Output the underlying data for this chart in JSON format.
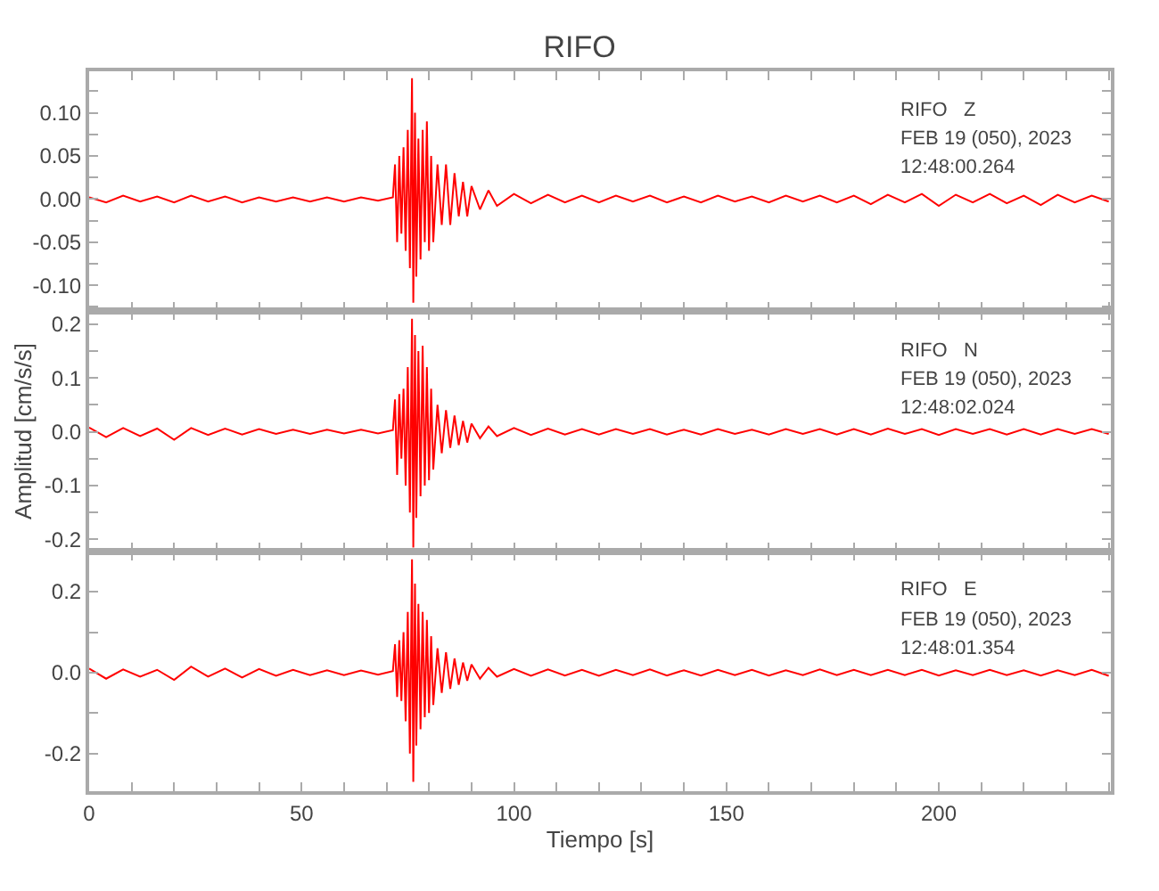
{
  "chart_data": [
    {
      "type": "line",
      "title": "RIFO",
      "tick_labels": "y",
      "annotations": [
        "RIFO   Z",
        "FEB 19 (050), 2023",
        "12:48:00.264"
      ],
      "xlim": [
        0,
        240.5
      ],
      "xticks": [
        0,
        {
          "value": 10,
          "label": null
        },
        {
          "value": 20,
          "label": null
        },
        {
          "value": 30,
          "label": null
        },
        {
          "value": 40,
          "label": null
        },
        50,
        {
          "value": 60,
          "label": null
        },
        {
          "value": 70,
          "label": null
        },
        {
          "value": 80,
          "label": null
        },
        {
          "value": 90,
          "label": null
        },
        100,
        {
          "value": 110,
          "label": null
        },
        {
          "value": 120,
          "label": null
        },
        {
          "value": 130,
          "label": null
        },
        {
          "value": 140,
          "label": null
        },
        150,
        {
          "value": 160,
          "label": null
        },
        {
          "value": 170,
          "label": null
        },
        {
          "value": 180,
          "label": null
        },
        {
          "value": 190,
          "label": null
        },
        200,
        {
          "value": 210,
          "label": null
        },
        {
          "value": 220,
          "label": null
        },
        {
          "value": 230,
          "label": null
        },
        {
          "value": 240,
          "label": null
        }
      ],
      "ylim": [
        -0.13,
        0.148
      ],
      "yticks": [
        {
          "value": -0.125,
          "label": null
        },
        {
          "value": -0.1,
          "label": "-0.10"
        },
        {
          "value": -0.075,
          "label": null
        },
        {
          "value": -0.05,
          "label": "-0.05"
        },
        {
          "value": -0.025,
          "label": null
        },
        {
          "value": 0,
          "label": "0.00"
        },
        {
          "value": 0.025,
          "label": null
        },
        {
          "value": 0.05,
          "label": "0.05"
        },
        {
          "value": 0.075,
          "label": null
        },
        {
          "value": 0.1,
          "label": "0.10"
        },
        {
          "value": 0.125,
          "label": null
        }
      ],
      "x": [
        0,
        4,
        8,
        12,
        16,
        20,
        24,
        28,
        32,
        36,
        40,
        44,
        48,
        52,
        56,
        60,
        64,
        68,
        71.5,
        72,
        72.5,
        73,
        73.5,
        74,
        74.5,
        75,
        75.5,
        76,
        76.3,
        76.7,
        77,
        77.5,
        78,
        78.5,
        79,
        79.5,
        80,
        80.5,
        81,
        82,
        83,
        84,
        85,
        86,
        87,
        88,
        89,
        90,
        92,
        94,
        96,
        100,
        104,
        108,
        112,
        116,
        120,
        124,
        128,
        132,
        136,
        140,
        144,
        148,
        152,
        156,
        160,
        164,
        168,
        172,
        176,
        180,
        184,
        188,
        192,
        196,
        200,
        204,
        208,
        212,
        216,
        220,
        224,
        228,
        232,
        236,
        240
      ],
      "series": [
        {
          "color": "#ff0000",
          "values": [
            0.002,
            -0.004,
            0.004,
            -0.003,
            0.003,
            -0.004,
            0.004,
            -0.003,
            0.003,
            -0.004,
            0.002,
            -0.003,
            0.002,
            -0.003,
            0.002,
            -0.003,
            0.002,
            -0.002,
            0.002,
            0.04,
            -0.05,
            0.05,
            -0.04,
            0.06,
            -0.06,
            0.08,
            -0.08,
            0.14,
            -0.12,
            0.1,
            -0.09,
            0.07,
            -0.07,
            0.08,
            -0.05,
            0.09,
            -0.06,
            0.05,
            -0.05,
            0.04,
            -0.03,
            0.04,
            -0.03,
            0.03,
            -0.02,
            0.02,
            -0.02,
            0.015,
            -0.012,
            0.01,
            -0.008,
            0.006,
            -0.005,
            0.005,
            -0.004,
            0.004,
            -0.004,
            0.004,
            -0.003,
            0.004,
            -0.004,
            0.003,
            -0.004,
            0.004,
            -0.003,
            0.003,
            -0.004,
            0.004,
            -0.003,
            0.004,
            -0.004,
            0.004,
            -0.006,
            0.005,
            -0.004,
            0.006,
            -0.008,
            0.005,
            -0.004,
            0.006,
            -0.005,
            0.004,
            -0.007,
            0.005,
            -0.004,
            0.004,
            -0.003
          ]
        }
      ]
    },
    {
      "type": "line",
      "ylabel": "Amplitud [cm/s/s]",
      "tick_labels": "y",
      "annotations": [
        "RIFO   N",
        "FEB 19 (050), 2023",
        "12:48:02.024"
      ],
      "xlim": [
        0,
        240.5
      ],
      "xticks": [
        0,
        {
          "value": 10,
          "label": null
        },
        {
          "value": 20,
          "label": null
        },
        {
          "value": 30,
          "label": null
        },
        {
          "value": 40,
          "label": null
        },
        50,
        {
          "value": 60,
          "label": null
        },
        {
          "value": 70,
          "label": null
        },
        {
          "value": 80,
          "label": null
        },
        {
          "value": 90,
          "label": null
        },
        100,
        {
          "value": 110,
          "label": null
        },
        {
          "value": 120,
          "label": null
        },
        {
          "value": 130,
          "label": null
        },
        {
          "value": 140,
          "label": null
        },
        150,
        {
          "value": 160,
          "label": null
        },
        {
          "value": 170,
          "label": null
        },
        {
          "value": 180,
          "label": null
        },
        {
          "value": 190,
          "label": null
        },
        200,
        {
          "value": 210,
          "label": null
        },
        {
          "value": 220,
          "label": null
        },
        {
          "value": 230,
          "label": null
        },
        {
          "value": 240,
          "label": null
        }
      ],
      "ylim": [
        -0.222,
        0.224
      ],
      "yticks": [
        {
          "value": -0.2,
          "label": "-0.2"
        },
        {
          "value": -0.15,
          "label": null
        },
        {
          "value": -0.1,
          "label": "-0.1"
        },
        {
          "value": -0.05,
          "label": null
        },
        {
          "value": 0,
          "label": "0.0"
        },
        {
          "value": 0.05,
          "label": null
        },
        {
          "value": 0.1,
          "label": "0.1"
        },
        {
          "value": 0.15,
          "label": null
        },
        {
          "value": 0.2,
          "label": "0.2"
        }
      ],
      "x": [
        0,
        4,
        8,
        12,
        16,
        20,
        24,
        28,
        32,
        36,
        40,
        44,
        48,
        52,
        56,
        60,
        64,
        68,
        71.5,
        72,
        72.5,
        73,
        73.5,
        74,
        74.5,
        75,
        75.5,
        76,
        76.3,
        76.7,
        77,
        77.5,
        78,
        78.5,
        79,
        79.5,
        80,
        80.5,
        81,
        82,
        83,
        84,
        85,
        86,
        87,
        88,
        89,
        90,
        92,
        94,
        96,
        100,
        104,
        108,
        112,
        116,
        120,
        124,
        128,
        132,
        136,
        140,
        144,
        148,
        152,
        156,
        160,
        164,
        168,
        172,
        176,
        180,
        184,
        188,
        192,
        196,
        200,
        204,
        208,
        212,
        216,
        220,
        224,
        228,
        232,
        236,
        240
      ],
      "series": [
        {
          "color": "#ff0000",
          "values": [
            0.008,
            -0.01,
            0.007,
            -0.008,
            0.006,
            -0.015,
            0.007,
            -0.006,
            0.006,
            -0.005,
            0.005,
            -0.004,
            0.004,
            -0.004,
            0.004,
            -0.003,
            0.004,
            -0.003,
            0.003,
            0.06,
            -0.08,
            0.07,
            -0.05,
            0.08,
            -0.1,
            0.12,
            -0.15,
            0.21,
            -0.215,
            0.18,
            -0.16,
            0.15,
            -0.12,
            0.16,
            -0.1,
            0.12,
            -0.09,
            0.08,
            -0.07,
            0.05,
            -0.04,
            0.04,
            -0.03,
            0.03,
            -0.025,
            0.02,
            -0.02,
            0.015,
            -0.012,
            0.01,
            -0.008,
            0.007,
            -0.006,
            0.006,
            -0.005,
            0.005,
            -0.005,
            0.005,
            -0.004,
            0.005,
            -0.005,
            0.004,
            -0.005,
            0.005,
            -0.004,
            0.004,
            -0.005,
            0.005,
            -0.004,
            0.005,
            -0.005,
            0.005,
            -0.005,
            0.006,
            -0.004,
            0.005,
            -0.006,
            0.005,
            -0.004,
            0.005,
            -0.005,
            0.005,
            -0.005,
            0.005,
            -0.004,
            0.005,
            -0.004
          ]
        }
      ]
    },
    {
      "type": "line",
      "xlabel": "Tiempo [s]",
      "annotations": [
        "RIFO   E",
        "FEB 19 (050), 2023",
        "12:48:01.354"
      ],
      "xlim": [
        0,
        240.5
      ],
      "xticks": [
        0,
        {
          "value": 10,
          "label": null
        },
        {
          "value": 20,
          "label": null
        },
        {
          "value": 30,
          "label": null
        },
        {
          "value": 40,
          "label": null
        },
        50,
        {
          "value": 60,
          "label": null
        },
        {
          "value": 70,
          "label": null
        },
        {
          "value": 80,
          "label": null
        },
        {
          "value": 90,
          "label": null
        },
        100,
        {
          "value": 110,
          "label": null
        },
        {
          "value": 120,
          "label": null
        },
        {
          "value": 130,
          "label": null
        },
        {
          "value": 140,
          "label": null
        },
        150,
        {
          "value": 160,
          "label": null
        },
        {
          "value": 170,
          "label": null
        },
        {
          "value": 180,
          "label": null
        },
        {
          "value": 190,
          "label": null
        },
        200,
        {
          "value": 210,
          "label": null
        },
        {
          "value": 220,
          "label": null
        },
        {
          "value": 230,
          "label": null
        },
        {
          "value": 240,
          "label": null
        }
      ],
      "ylim": [
        -0.293,
        0.3
      ],
      "yticks": [
        {
          "value": -0.2,
          "label": "-0.2"
        },
        {
          "value": -0.1,
          "label": null
        },
        {
          "value": 0,
          "label": "0.0"
        },
        {
          "value": 0.1,
          "label": null
        },
        {
          "value": 0.2,
          "label": "0.2"
        }
      ],
      "x": [
        0,
        4,
        8,
        12,
        16,
        20,
        24,
        28,
        32,
        36,
        40,
        44,
        48,
        52,
        56,
        60,
        64,
        68,
        71.5,
        72,
        72.5,
        73,
        73.5,
        74,
        74.5,
        75,
        75.5,
        76,
        76.3,
        76.7,
        77,
        77.5,
        78,
        78.5,
        79,
        79.5,
        80,
        80.5,
        81,
        82,
        83,
        84,
        85,
        86,
        87,
        88,
        89,
        90,
        92,
        94,
        96,
        100,
        104,
        108,
        112,
        116,
        120,
        124,
        128,
        132,
        136,
        140,
        144,
        148,
        152,
        156,
        160,
        164,
        168,
        172,
        176,
        180,
        184,
        188,
        192,
        196,
        200,
        204,
        208,
        212,
        216,
        220,
        224,
        228,
        232,
        236,
        240
      ],
      "series": [
        {
          "color": "#ff0000",
          "values": [
            0.01,
            -0.015,
            0.008,
            -0.01,
            0.007,
            -0.018,
            0.015,
            -0.01,
            0.01,
            -0.012,
            0.009,
            -0.008,
            0.007,
            -0.006,
            0.006,
            -0.006,
            0.005,
            -0.005,
            0.004,
            0.07,
            -0.06,
            0.08,
            -0.07,
            0.1,
            -0.12,
            0.15,
            -0.2,
            0.28,
            -0.27,
            0.22,
            -0.18,
            0.17,
            -0.14,
            0.15,
            -0.11,
            0.13,
            -0.1,
            0.09,
            -0.08,
            0.06,
            -0.05,
            0.05,
            -0.04,
            0.035,
            -0.03,
            0.025,
            -0.02,
            0.02,
            -0.015,
            0.012,
            -0.01,
            0.009,
            -0.008,
            0.008,
            -0.007,
            0.007,
            -0.008,
            0.007,
            -0.006,
            0.008,
            -0.007,
            0.006,
            -0.007,
            0.007,
            -0.006,
            0.007,
            -0.007,
            0.006,
            -0.006,
            0.008,
            -0.006,
            0.007,
            -0.006,
            0.007,
            -0.006,
            0.007,
            -0.007,
            0.006,
            -0.006,
            0.007,
            -0.006,
            0.006,
            -0.007,
            0.006,
            -0.006,
            0.007,
            -0.008
          ]
        }
      ]
    }
  ]
}
